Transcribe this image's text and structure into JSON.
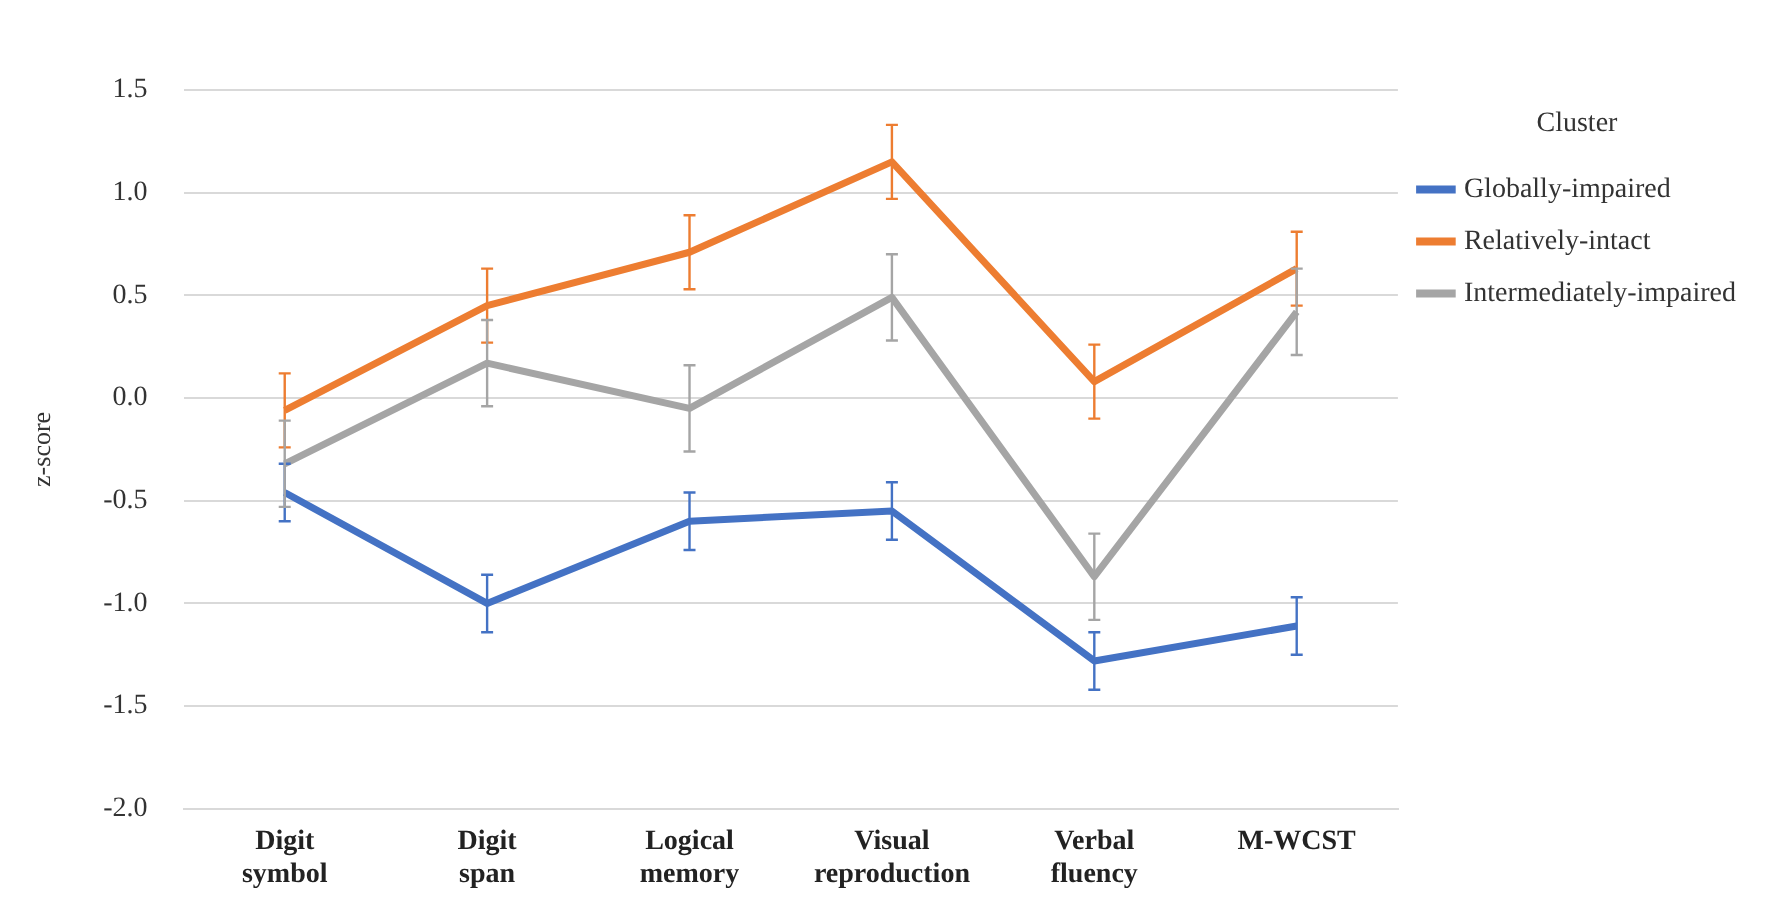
{
  "chart_data": {
    "type": "line",
    "ylabel": "z-score",
    "legend_title": "Cluster",
    "legend": "right",
    "categories": [
      "Digit symbol",
      "Digit span",
      "Logical memory",
      "Visual reproduction",
      "Verbal fluency",
      "M-WCST"
    ],
    "series": [
      {
        "name": "Globally-impaired",
        "color": "#4472c4",
        "values": [
          -0.46,
          -1.0,
          -0.6,
          -0.55,
          -1.28,
          -1.11
        ],
        "errors": [
          0.14,
          0.14,
          0.14,
          0.14,
          0.14,
          0.14
        ]
      },
      {
        "name": "Relatively-intact",
        "color": "#ed7d31",
        "values": [
          -0.06,
          0.45,
          0.71,
          1.15,
          0.08,
          0.63
        ],
        "errors": [
          0.18,
          0.18,
          0.18,
          0.18,
          0.18,
          0.18
        ]
      },
      {
        "name": "Intermediately-impaired",
        "color": "#a5a5a5",
        "values": [
          -0.32,
          0.17,
          -0.05,
          0.49,
          -0.87,
          0.42
        ],
        "errors": [
          0.21,
          0.21,
          0.21,
          0.21,
          0.21,
          0.21
        ]
      }
    ],
    "ylim": [
      -2.0,
      1.5
    ],
    "yticks": [
      {
        "value": -2,
        "label": "-2.0"
      },
      {
        "value": -1.5,
        "label": "-1.5"
      },
      {
        "value": -1,
        "label": "-1.0"
      },
      {
        "value": -0.5,
        "label": "-0.5"
      },
      {
        "value": 0,
        "label": "0.0"
      },
      {
        "value": 0.5,
        "label": "0.5"
      },
      {
        "value": 1,
        "label": "1.0"
      },
      {
        "value": 1.5,
        "label": "1.5"
      }
    ],
    "grid": "y",
    "marker": "none",
    "line_style": "solid"
  }
}
